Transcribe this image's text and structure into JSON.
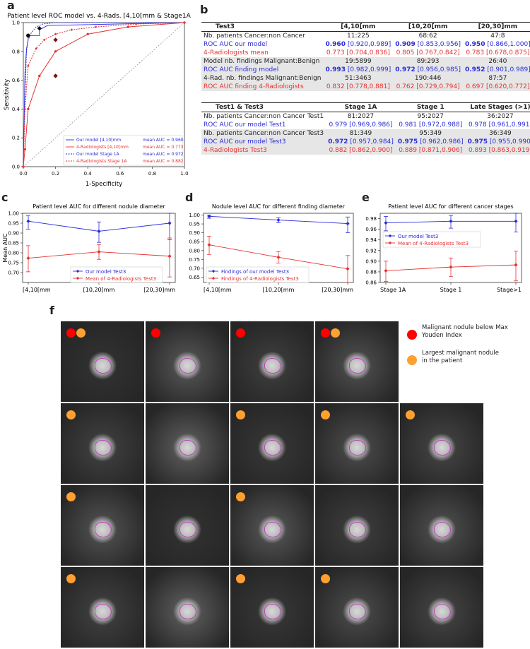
{
  "panels": {
    "a": "a",
    "b": "b",
    "c": "c",
    "d": "d",
    "e": "e",
    "f": "f"
  },
  "chart_data": [
    {
      "id": "a",
      "type": "line",
      "title": "Patient level ROC model vs. 4-Rads. [4,10[mm & Stage1A",
      "xlabel": "1-Specificity",
      "ylabel": "Sensitivity",
      "xlim": [
        0,
        1
      ],
      "ylim": [
        0,
        1
      ],
      "xticks": [
        "0.0",
        "0.2",
        "0.4",
        "0.6",
        "0.8",
        "1.0"
      ],
      "yticks": [
        "0.0",
        "0.2",
        "0.4",
        "0.6",
        "0.8",
        "1.0"
      ],
      "legend_position": "bottom-right",
      "series": [
        {
          "name": "Our model [4,10[mm",
          "auc_label": "mean AUC = 0.960",
          "color": "#2a2ad8",
          "style": "solid",
          "x": [
            0,
            0.005,
            0.01,
            0.02,
            0.03,
            0.03,
            0.1,
            0.1,
            0.15,
            1
          ],
          "y": [
            0,
            0.3,
            0.65,
            0.82,
            0.88,
            0.91,
            0.91,
            0.95,
            0.98,
            1
          ]
        },
        {
          "name": "4-Radiologists [4,10[mm",
          "auc_label": "mean AUC = 0.773",
          "color": "#e63232",
          "style": "solid",
          "x": [
            0,
            0.01,
            0.03,
            0.1,
            0.2,
            0.4,
            0.65,
            1
          ],
          "y": [
            0,
            0.12,
            0.4,
            0.63,
            0.8,
            0.92,
            0.97,
            1
          ]
        },
        {
          "name": "Our model Stage 1A",
          "auc_label": "mean AUC = 0.972",
          "color": "#2a2ad8",
          "style": "dotted",
          "x": [
            0,
            0.005,
            0.01,
            0.02,
            0.03,
            0.05,
            0.08,
            0.12,
            0.2,
            1
          ],
          "y": [
            0,
            0.2,
            0.5,
            0.8,
            0.88,
            0.93,
            0.97,
            0.99,
            1,
            1
          ]
        },
        {
          "name": "4-Radiologists Stage 1A",
          "auc_label": "mean AUC = 0.882",
          "color": "#e63232",
          "style": "dotted",
          "x": [
            0,
            0.01,
            0.03,
            0.08,
            0.13,
            0.2,
            0.3,
            0.45,
            0.7,
            1
          ],
          "y": [
            0,
            0.4,
            0.7,
            0.82,
            0.88,
            0.92,
            0.95,
            0.97,
            0.99,
            1
          ]
        }
      ],
      "markers": [
        {
          "x": 0.03,
          "y": 0.91,
          "shape": "circle",
          "color": "#111"
        },
        {
          "x": 0.1,
          "y": 0.96,
          "shape": "diamond",
          "color": "#111"
        },
        {
          "x": 0.2,
          "y": 0.63,
          "shape": "diamond",
          "color": "#7a1010"
        },
        {
          "x": 0.2,
          "y": 0.88,
          "shape": "diamond",
          "color": "#7a1010"
        }
      ]
    },
    {
      "id": "c",
      "type": "line",
      "title": "Patient level AUC for different nodule diameter",
      "ylabel": "Mean AUC",
      "ylim": [
        0.65,
        1.0
      ],
      "yticks": [
        "0.70",
        "0.75",
        "0.80",
        "0.85",
        "0.90",
        "0.95",
        "1.00"
      ],
      "categories": [
        "[4,10[mm",
        "[10,20[mm",
        "[20,30]mm"
      ],
      "legend_position": "bottom-center",
      "series": [
        {
          "name": "Our model Test3",
          "color": "#2a2ad8",
          "values": [
            0.96,
            0.909,
            0.95
          ],
          "lo": [
            0.92,
            0.853,
            0.866
          ],
          "hi": [
            0.989,
            0.956,
            1.0
          ]
        },
        {
          "name": "Mean of 4-Radiologists Test3",
          "color": "#e63232",
          "values": [
            0.773,
            0.805,
            0.783
          ],
          "lo": [
            0.704,
            0.767,
            0.678
          ],
          "hi": [
            0.836,
            0.842,
            0.875
          ]
        }
      ]
    },
    {
      "id": "d",
      "type": "line",
      "title": "Nodule level AUC for different finding diameter",
      "ylim": [
        0.62,
        1.01
      ],
      "yticks": [
        "0.65",
        "0.70",
        "0.75",
        "0.80",
        "0.85",
        "0.90",
        "0.95",
        "1.00"
      ],
      "categories": [
        "[4,10[mm",
        "[10,20[mm",
        "[20,30]mm"
      ],
      "legend_position": "bottom-left",
      "series": [
        {
          "name": "Findings of our model Test3",
          "color": "#2a2ad8",
          "values": [
            0.993,
            0.972,
            0.952
          ],
          "lo": [
            0.982,
            0.956,
            0.901
          ],
          "hi": [
            0.999,
            0.985,
            0.989
          ]
        },
        {
          "name": "Findings of 4-Radiologists Test3",
          "color": "#e63232",
          "values": [
            0.832,
            0.762,
            0.697
          ],
          "lo": [
            0.778,
            0.729,
            0.62
          ],
          "hi": [
            0.881,
            0.794,
            0.772
          ]
        }
      ]
    },
    {
      "id": "e",
      "type": "line",
      "title": "Patient level AUC for different cancer stages",
      "ylim": [
        0.86,
        0.99
      ],
      "yticks": [
        "0.86",
        "0.88",
        "0.90",
        "0.92",
        "0.94",
        "0.96",
        "0.98"
      ],
      "categories": [
        "Stage 1A",
        "Stage 1",
        "Stage>1"
      ],
      "legend_position": "top-left",
      "series": [
        {
          "name": "Our model Test3",
          "color": "#2a2ad8",
          "values": [
            0.972,
            0.975,
            0.975
          ],
          "lo": [
            0.957,
            0.962,
            0.955
          ],
          "hi": [
            0.984,
            0.986,
            0.99
          ]
        },
        {
          "name": "Mean of 4-Radiologists Test3",
          "color": "#e63232",
          "values": [
            0.882,
            0.889,
            0.893
          ],
          "lo": [
            0.862,
            0.871,
            0.863
          ],
          "hi": [
            0.9,
            0.906,
            0.919
          ]
        }
      ]
    }
  ],
  "table1": {
    "header": [
      "Test3",
      "[4,10[mm",
      "[10,20[mm",
      "[20,30]mm"
    ],
    "rows": [
      {
        "cls": "blk",
        "shade": false,
        "cells": [
          "Nb. patients Cancer:non Cancer",
          "11:225",
          "68:62",
          "47:8"
        ]
      },
      {
        "cls": "blue",
        "shade": false,
        "cells": [
          "ROC AUC our model",
          "0.960",
          "[0.920,0.989]",
          "0.909",
          "[0.853,0.956]",
          "0.950",
          "[0.866,1.000]"
        ]
      },
      {
        "cls": "red",
        "shade": false,
        "cells": [
          "4-Radiologists mean",
          "0.773 [0.704,0.836]",
          "0.805 [0.767,0.842]",
          "0.783 [0.678,0.875]"
        ]
      },
      {
        "cls": "blk",
        "shade": true,
        "cells": [
          "Model nb. findings Malignant:Benign",
          "19:5899",
          "89:293",
          "26:40"
        ]
      },
      {
        "cls": "blue",
        "shade": true,
        "cells": [
          "ROC AUC finding model",
          "0.993",
          "[0.982,0.999]",
          "0.972",
          "[0.956,0.985]",
          "0.952",
          "[0.901,0.989]"
        ]
      },
      {
        "cls": "blk",
        "shade": true,
        "cells": [
          "4-Rad. nb. findings Malignant:Benign",
          "51:3463",
          "190:446",
          "87:57"
        ]
      },
      {
        "cls": "red",
        "shade": true,
        "cells": [
          "ROC AUC finding 4-Radiologists",
          "0.832 [0.778,0.881]",
          "0.762 [0.729,0.794]",
          "0.697 [0.620,0.772]"
        ]
      }
    ]
  },
  "table2": {
    "header": [
      "Test1 & Test3",
      "Stage 1A",
      "Stage 1",
      "Late Stages (>1)"
    ],
    "rows": [
      {
        "cls": "blk",
        "shade": false,
        "cells": [
          "Nb. patients Cancer:non Cancer Test1",
          "81:2027",
          "95:2027",
          "36:2027"
        ]
      },
      {
        "cls": "blue",
        "shade": false,
        "cells": [
          "ROC AUC our model Test1",
          "0.979 [0.969,0.986]",
          "0.981 [0.972,0.988]",
          "0.978 [0.961,0.991]"
        ]
      },
      {
        "cls": "blk",
        "shade": true,
        "cells": [
          "Nb. patients Cancer:non Cancer Test3",
          "81:349",
          "95:349",
          "36:349"
        ]
      },
      {
        "cls": "blue",
        "shade": true,
        "cells": [
          "ROC AUC our model Test3",
          "0.972",
          "[0.957,0.984]",
          "0.975",
          "[0.962,0.986]",
          "0.975",
          "[0.955,0.990]"
        ]
      },
      {
        "cls": "red",
        "shade": true,
        "cells": [
          "4-Radiologists Test3",
          "0.882 [0.862,0.900]",
          "0.889 [0.871,0.906]",
          "0.893 [0.863,0.919]"
        ]
      }
    ]
  },
  "legend_f": {
    "red_label": "Malignant nodule below Max Youden Index",
    "orange_label": "Largest malignant nodule in the patient",
    "red_color": "#ff0000",
    "orange_color": "#ffa030"
  },
  "tiles": [
    {
      "red": true,
      "orange": true
    },
    {
      "red": true,
      "orange": false
    },
    {
      "red": true,
      "orange": false
    },
    {
      "red": true,
      "orange": true
    },
    {
      "red": false,
      "orange": true
    },
    {
      "red": false,
      "orange": false
    },
    {
      "red": false,
      "orange": true
    },
    {
      "red": false,
      "orange": true
    },
    {
      "red": false,
      "orange": true
    },
    {
      "red": false,
      "orange": true
    },
    {
      "red": false,
      "orange": false
    },
    {
      "red": false,
      "orange": true
    },
    {
      "red": false,
      "orange": false
    },
    {
      "red": false,
      "orange": false
    },
    {
      "red": false,
      "orange": true
    },
    {
      "red": false,
      "orange": false
    },
    {
      "red": false,
      "orange": true
    },
    {
      "red": false,
      "orange": true
    },
    {
      "red": false,
      "orange": false
    }
  ]
}
